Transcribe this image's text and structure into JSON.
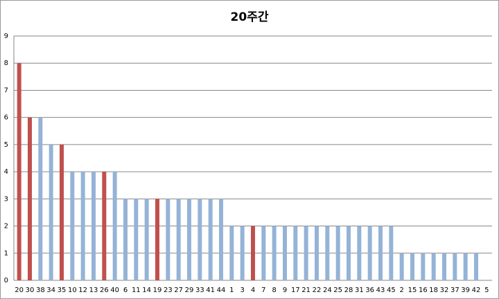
{
  "chart_data": {
    "type": "bar",
    "title": "20주간",
    "categories": [
      "20",
      "30",
      "38",
      "34",
      "35",
      "10",
      "12",
      "13",
      "26",
      "40",
      "6",
      "11",
      "14",
      "19",
      "23",
      "27",
      "29",
      "33",
      "41",
      "44",
      "1",
      "3",
      "4",
      "7",
      "8",
      "9",
      "17",
      "21",
      "22",
      "24",
      "25",
      "28",
      "31",
      "36",
      "43",
      "45",
      "2",
      "15",
      "16",
      "18",
      "32",
      "37",
      "39",
      "42",
      "5"
    ],
    "values": [
      8,
      6,
      6,
      5,
      5,
      4,
      4,
      4,
      4,
      4,
      3,
      3,
      3,
      3,
      3,
      3,
      3,
      3,
      3,
      3,
      2,
      2,
      2,
      2,
      2,
      2,
      2,
      2,
      2,
      2,
      2,
      2,
      2,
      2,
      2,
      2,
      1,
      1,
      1,
      1,
      1,
      1,
      1,
      1,
      0
    ],
    "colors": [
      "#c0504d",
      "#c0504d",
      "#95b3d7",
      "#95b3d7",
      "#c0504d",
      "#95b3d7",
      "#95b3d7",
      "#95b3d7",
      "#c0504d",
      "#95b3d7",
      "#95b3d7",
      "#95b3d7",
      "#95b3d7",
      "#c0504d",
      "#95b3d7",
      "#95b3d7",
      "#95b3d7",
      "#95b3d7",
      "#95b3d7",
      "#95b3d7",
      "#95b3d7",
      "#95b3d7",
      "#c0504d",
      "#95b3d7",
      "#95b3d7",
      "#95b3d7",
      "#95b3d7",
      "#95b3d7",
      "#95b3d7",
      "#95b3d7",
      "#95b3d7",
      "#95b3d7",
      "#95b3d7",
      "#95b3d7",
      "#95b3d7",
      "#95b3d7",
      "#95b3d7",
      "#95b3d7",
      "#95b3d7",
      "#95b3d7",
      "#95b3d7",
      "#95b3d7",
      "#95b3d7",
      "#95b3d7",
      "#95b3d7"
    ],
    "ylim": [
      0,
      9
    ],
    "yticks": [
      0,
      1,
      2,
      3,
      4,
      5,
      6,
      7,
      8,
      9
    ],
    "grid": true
  }
}
